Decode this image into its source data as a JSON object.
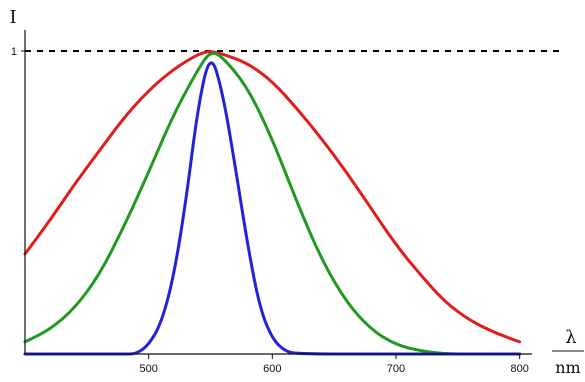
{
  "chart_data": {
    "type": "line",
    "xlabel": "λ",
    "xunit": "nm",
    "ylabel": "I",
    "x_ticks": [
      500,
      600,
      700,
      800
    ],
    "y_ticks": [
      {
        "value": 1,
        "label": "1"
      }
    ],
    "xlim": [
      400,
      810
    ],
    "ylim": [
      0,
      1.0
    ],
    "reference_line": {
      "y": 1,
      "style": "dashed",
      "color": "#000000"
    },
    "series": [
      {
        "color": "#e21b1b",
        "x": [
          400,
          420,
          440,
          460,
          480,
          500,
          520,
          540,
          550,
          560,
          580,
          600,
          620,
          640,
          660,
          680,
          700,
          720,
          740,
          760,
          780,
          800
        ],
        "y": [
          0.33,
          0.44,
          0.56,
          0.67,
          0.78,
          0.87,
          0.94,
          0.99,
          1.0,
          0.99,
          0.96,
          0.9,
          0.81,
          0.71,
          0.6,
          0.48,
          0.36,
          0.26,
          0.17,
          0.11,
          0.07,
          0.04
        ]
      },
      {
        "color": "#1f9a1f",
        "x": [
          400,
          420,
          440,
          460,
          480,
          500,
          520,
          540,
          550,
          560,
          580,
          600,
          620,
          640,
          660,
          680,
          700,
          720,
          740,
          760,
          780,
          800
        ],
        "y": [
          0.04,
          0.08,
          0.15,
          0.26,
          0.42,
          0.6,
          0.79,
          0.94,
          1.0,
          0.98,
          0.88,
          0.71,
          0.5,
          0.31,
          0.17,
          0.08,
          0.03,
          0.01,
          0.0,
          0.0,
          0.0,
          0.0
        ]
      },
      {
        "color": "#2222dd",
        "x": [
          400,
          480,
          490,
          500,
          510,
          520,
          530,
          540,
          550,
          560,
          570,
          580,
          590,
          600,
          610,
          620,
          700,
          800
        ],
        "y": [
          0.0,
          0.0,
          0.0,
          0.03,
          0.1,
          0.25,
          0.5,
          0.82,
          1.0,
          0.86,
          0.62,
          0.36,
          0.15,
          0.05,
          0.01,
          0.0,
          0.0,
          0.0
        ]
      }
    ]
  }
}
